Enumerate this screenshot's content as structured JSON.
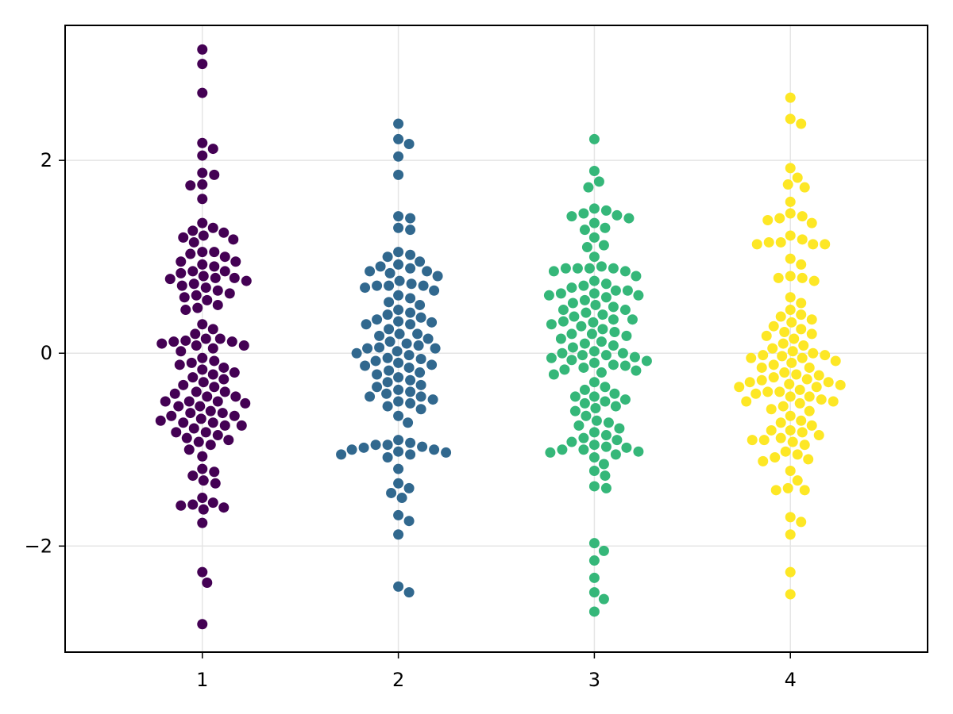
{
  "chart_data": {
    "type": "scatter",
    "subtype": "beeswarm",
    "title": "",
    "xlabel": "",
    "ylabel": "",
    "xlim": [
      0.3,
      4.7
    ],
    "ylim": [
      -3.1,
      3.4
    ],
    "x_ticks": [
      1,
      2,
      3,
      4
    ],
    "x_tick_labels": [
      "1",
      "2",
      "3",
      "4"
    ],
    "y_ticks": [
      -2,
      0,
      2
    ],
    "y_tick_labels": [
      "−2",
      "0",
      "2"
    ],
    "grid": true,
    "legend": "none",
    "colors": [
      "#440154",
      "#31688e",
      "#35b779",
      "#fde725"
    ],
    "series": [
      {
        "category": 1,
        "y": [
          3.15,
          3.0,
          2.7,
          2.18,
          2.12,
          2.05,
          1.87,
          1.85,
          1.75,
          1.74,
          1.6,
          1.35,
          1.3,
          1.27,
          1.25,
          1.22,
          1.2,
          1.18,
          1.15,
          1.05,
          1.05,
          1.03,
          1.0,
          0.95,
          0.95,
          0.92,
          0.9,
          0.85,
          0.85,
          0.83,
          0.8,
          0.78,
          0.78,
          0.77,
          0.75,
          0.72,
          0.7,
          0.68,
          0.65,
          0.62,
          0.6,
          0.58,
          0.55,
          0.5,
          0.47,
          0.45,
          0.3,
          0.25,
          0.2,
          0.15,
          0.15,
          0.13,
          0.12,
          0.12,
          0.1,
          0.08,
          0.08,
          0.05,
          0.02,
          -0.05,
          -0.08,
          -0.1,
          -0.12,
          -0.15,
          -0.17,
          -0.2,
          -0.22,
          -0.25,
          -0.27,
          -0.3,
          -0.33,
          -0.35,
          -0.4,
          -0.4,
          -0.42,
          -0.45,
          -0.45,
          -0.5,
          -0.5,
          -0.5,
          -0.52,
          -0.55,
          -0.55,
          -0.6,
          -0.62,
          -0.62,
          -0.65,
          -0.65,
          -0.68,
          -0.7,
          -0.72,
          -0.72,
          -0.75,
          -0.75,
          -0.78,
          -0.82,
          -0.82,
          -0.85,
          -0.88,
          -0.9,
          -0.92,
          -0.95,
          -1.0,
          -1.07,
          -1.2,
          -1.23,
          -1.27,
          -1.32,
          -1.35,
          -1.5,
          -1.55,
          -1.57,
          -1.58,
          -1.6,
          -1.62,
          -1.76,
          -2.27,
          -2.38,
          -2.81
        ]
      },
      {
        "category": 2,
        "y": [
          2.38,
          2.22,
          2.17,
          2.04,
          1.85,
          1.42,
          1.4,
          1.3,
          1.28,
          1.05,
          1.02,
          1.0,
          0.95,
          0.92,
          0.9,
          0.88,
          0.85,
          0.85,
          0.83,
          0.8,
          0.75,
          0.72,
          0.7,
          0.7,
          0.7,
          0.68,
          0.65,
          0.6,
          0.57,
          0.53,
          0.5,
          0.45,
          0.42,
          0.4,
          0.37,
          0.35,
          0.33,
          0.32,
          0.3,
          0.3,
          0.25,
          0.2,
          0.2,
          0.18,
          0.15,
          0.12,
          0.1,
          0.08,
          0.06,
          0.05,
          0.05,
          0.02,
          0.0,
          -0.02,
          -0.05,
          -0.06,
          -0.08,
          -0.1,
          -0.12,
          -0.13,
          -0.15,
          -0.18,
          -0.2,
          -0.22,
          -0.25,
          -0.28,
          -0.3,
          -0.33,
          -0.35,
          -0.38,
          -0.4,
          -0.42,
          -0.45,
          -0.45,
          -0.48,
          -0.5,
          -0.52,
          -0.55,
          -0.58,
          -0.65,
          -0.72,
          -0.9,
          -0.93,
          -0.95,
          -0.95,
          -0.97,
          -0.98,
          -1.0,
          -1.0,
          -1.02,
          -1.03,
          -1.05,
          -1.05,
          -1.08,
          -1.2,
          -1.35,
          -1.4,
          -1.45,
          -1.5,
          -1.68,
          -1.74,
          -1.88,
          -2.42,
          -2.48
        ]
      },
      {
        "category": 3,
        "y": [
          2.22,
          1.89,
          1.78,
          1.72,
          1.5,
          1.48,
          1.45,
          1.43,
          1.42,
          1.4,
          1.35,
          1.3,
          1.28,
          1.2,
          1.12,
          1.1,
          1.0,
          0.9,
          0.88,
          0.88,
          0.88,
          0.88,
          0.85,
          0.85,
          0.8,
          0.75,
          0.72,
          0.7,
          0.68,
          0.65,
          0.65,
          0.62,
          0.62,
          0.6,
          0.6,
          0.58,
          0.55,
          0.52,
          0.5,
          0.48,
          0.45,
          0.45,
          0.42,
          0.4,
          0.38,
          0.35,
          0.35,
          0.33,
          0.32,
          0.3,
          0.28,
          0.25,
          0.22,
          0.2,
          0.2,
          0.18,
          0.15,
          0.12,
          0.1,
          0.08,
          0.06,
          0.02,
          0.0,
          0.0,
          -0.02,
          -0.02,
          -0.04,
          -0.05,
          -0.07,
          -0.08,
          -0.1,
          -0.12,
          -0.13,
          -0.15,
          -0.17,
          -0.18,
          -0.2,
          -0.22,
          -0.3,
          -0.35,
          -0.38,
          -0.42,
          -0.45,
          -0.45,
          -0.48,
          -0.5,
          -0.52,
          -0.55,
          -0.57,
          -0.6,
          -0.65,
          -0.7,
          -0.72,
          -0.75,
          -0.78,
          -0.82,
          -0.85,
          -0.88,
          -0.9,
          -0.92,
          -0.95,
          -0.97,
          -0.98,
          -1.0,
          -1.0,
          -1.02,
          -1.03,
          -1.05,
          -1.08,
          -1.15,
          -1.22,
          -1.27,
          -1.38,
          -1.4,
          -1.97,
          -2.05,
          -2.15,
          -2.33,
          -2.48,
          -2.55,
          -2.68
        ]
      },
      {
        "category": 4,
        "y": [
          2.65,
          2.43,
          2.38,
          1.92,
          1.82,
          1.75,
          1.72,
          1.57,
          1.45,
          1.42,
          1.4,
          1.38,
          1.35,
          1.22,
          1.18,
          1.15,
          1.15,
          1.13,
          1.13,
          1.13,
          0.98,
          0.92,
          0.8,
          0.78,
          0.78,
          0.75,
          0.58,
          0.52,
          0.45,
          0.4,
          0.38,
          0.35,
          0.32,
          0.28,
          0.25,
          0.22,
          0.2,
          0.18,
          0.15,
          0.1,
          0.08,
          0.05,
          0.02,
          0.0,
          -0.02,
          -0.02,
          -0.03,
          -0.05,
          -0.05,
          -0.08,
          -0.1,
          -0.12,
          -0.15,
          -0.15,
          -0.2,
          -0.22,
          -0.23,
          -0.25,
          -0.27,
          -0.28,
          -0.3,
          -0.3,
          -0.32,
          -0.33,
          -0.35,
          -0.35,
          -0.38,
          -0.4,
          -0.4,
          -0.42,
          -0.45,
          -0.45,
          -0.48,
          -0.5,
          -0.5,
          -0.52,
          -0.55,
          -0.58,
          -0.6,
          -0.65,
          -0.7,
          -0.72,
          -0.75,
          -0.8,
          -0.8,
          -0.82,
          -0.85,
          -0.88,
          -0.9,
          -0.9,
          -0.92,
          -0.95,
          -1.02,
          -1.05,
          -1.08,
          -1.1,
          -1.12,
          -1.22,
          -1.32,
          -1.4,
          -1.42,
          -1.42,
          -1.7,
          -1.75,
          -1.88,
          -2.27,
          -2.5
        ]
      }
    ]
  }
}
